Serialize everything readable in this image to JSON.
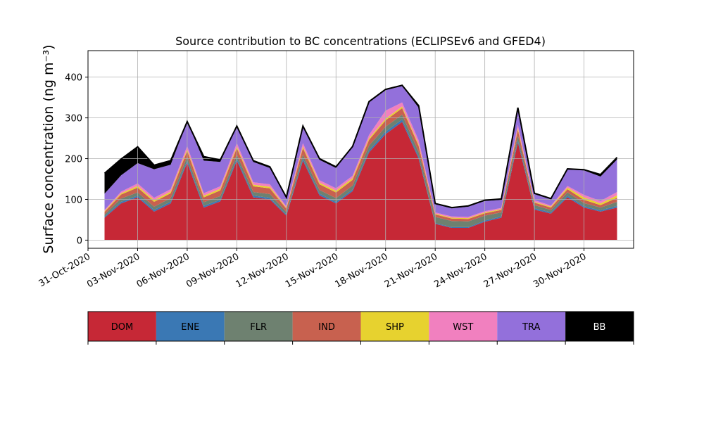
{
  "chart_data": {
    "type": "area",
    "stacked": true,
    "title": "Source contribution to BC concentrations (ECLIPSEv6 and GFED4)",
    "ylabel": "Surface concentration (ng m⁻³)",
    "xlabel": "",
    "ylim": [
      -20,
      465
    ],
    "xlim": [
      "2020-10-31",
      "2020-12-03"
    ],
    "grid": true,
    "x_ticks": [
      "31-Oct-2020",
      "03-Nov-2020",
      "06-Nov-2020",
      "09-Nov-2020",
      "12-Nov-2020",
      "15-Nov-2020",
      "18-Nov-2020",
      "21-Nov-2020",
      "24-Nov-2020",
      "27-Nov-2020",
      "30-Nov-2020"
    ],
    "y_ticks": [
      "0",
      "100",
      "200",
      "300",
      "400"
    ],
    "x": [
      "2020-11-01",
      "2020-11-02",
      "2020-11-03",
      "2020-11-04",
      "2020-11-05",
      "2020-11-06",
      "2020-11-07",
      "2020-11-08",
      "2020-11-09",
      "2020-11-10",
      "2020-11-11",
      "2020-11-12",
      "2020-11-13",
      "2020-11-14",
      "2020-11-15",
      "2020-11-16",
      "2020-11-17",
      "2020-11-18",
      "2020-11-19",
      "2020-11-20",
      "2020-11-21",
      "2020-11-22",
      "2020-11-23",
      "2020-11-24",
      "2020-11-25",
      "2020-11-26",
      "2020-11-27",
      "2020-11-28",
      "2020-11-29",
      "2020-11-30",
      "2020-12-01",
      "2020-12-02"
    ],
    "series": [
      {
        "name": "DOM",
        "color": "#c62836",
        "values": [
          55,
          90,
          105,
          70,
          90,
          190,
          80,
          95,
          195,
          105,
          100,
          60,
          195,
          110,
          90,
          120,
          215,
          260,
          290,
          200,
          40,
          30,
          30,
          45,
          55,
          240,
          75,
          65,
          105,
          80,
          70,
          80
        ]
      },
      {
        "name": "ENE",
        "color": "#3a78b4",
        "values": [
          3,
          4,
          4,
          4,
          4,
          5,
          4,
          4,
          5,
          4,
          4,
          3,
          5,
          4,
          4,
          4,
          5,
          6,
          6,
          5,
          2,
          2,
          2,
          3,
          3,
          5,
          3,
          3,
          4,
          3,
          3,
          4
        ]
      },
      {
        "name": "FLR",
        "color": "#6e8170",
        "values": [
          5,
          8,
          8,
          8,
          9,
          10,
          9,
          9,
          10,
          9,
          9,
          6,
          10,
          9,
          9,
          10,
          12,
          12,
          12,
          12,
          15,
          15,
          14,
          12,
          10,
          12,
          8,
          6,
          8,
          8,
          7,
          10
        ]
      },
      {
        "name": "IND",
        "color": "#c8614f",
        "values": [
          6,
          10,
          12,
          12,
          12,
          14,
          12,
          14,
          16,
          14,
          14,
          8,
          16,
          14,
          14,
          14,
          14,
          16,
          16,
          14,
          6,
          6,
          6,
          6,
          6,
          14,
          6,
          6,
          8,
          8,
          6,
          10
        ]
      },
      {
        "name": "SHP",
        "color": "#e7d22f",
        "values": [
          2,
          3,
          4,
          4,
          4,
          4,
          4,
          4,
          4,
          4,
          4,
          2,
          4,
          4,
          4,
          4,
          4,
          4,
          4,
          4,
          2,
          2,
          2,
          2,
          2,
          4,
          2,
          2,
          4,
          6,
          4,
          6
        ]
      },
      {
        "name": "WST",
        "color": "#f180bf",
        "values": [
          3,
          4,
          6,
          6,
          6,
          8,
          6,
          6,
          8,
          6,
          6,
          4,
          8,
          6,
          6,
          6,
          8,
          20,
          10,
          10,
          3,
          3,
          3,
          3,
          3,
          8,
          4,
          3,
          4,
          6,
          6,
          8
        ]
      },
      {
        "name": "TRA",
        "color": "#9370db",
        "values": [
          40,
          40,
          50,
          70,
          60,
          60,
          80,
          60,
          40,
          50,
          40,
          20,
          40,
          50,
          50,
          70,
          80,
          50,
          40,
          80,
          20,
          20,
          25,
          25,
          20,
          40,
          15,
          15,
          40,
          60,
          60,
          80
        ]
      },
      {
        "name": "BB",
        "color": "#000000",
        "values": [
          50,
          40,
          40,
          10,
          10,
          0,
          10,
          5,
          2,
          3,
          3,
          2,
          2,
          3,
          3,
          2,
          2,
          2,
          2,
          5,
          2,
          2,
          2,
          2,
          2,
          2,
          2,
          2,
          2,
          2,
          5,
          5
        ]
      }
    ],
    "legend": {
      "placement": "below",
      "entries": [
        "DOM",
        "ENE",
        "FLR",
        "IND",
        "SHP",
        "WST",
        "TRA",
        "BB"
      ]
    }
  }
}
